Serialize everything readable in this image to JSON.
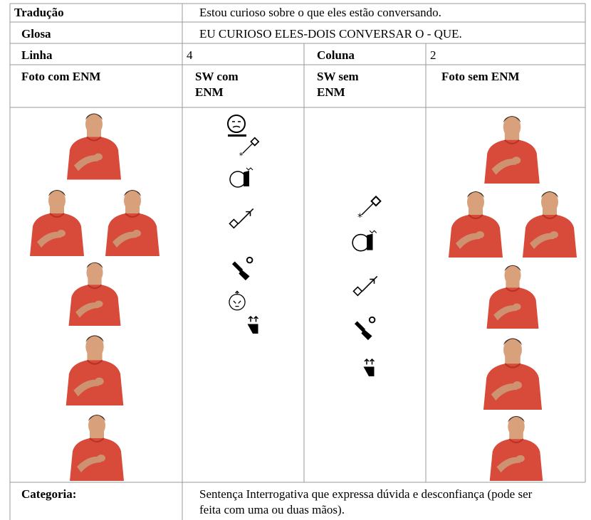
{
  "table": {
    "translation": {
      "label": "Tradução",
      "value": "Estou curioso sobre o que eles estão conversando."
    },
    "gloss": {
      "label": "Glosa",
      "value": "EU CURIOSO ELES-DOIS CONVERSAR O - QUE."
    },
    "position": {
      "line_label": "Linha",
      "line": 4,
      "column_label": "Coluna",
      "column": 2
    },
    "headers": [
      "Foto com ENM",
      "SW com ENM",
      "SW sem ENM",
      "Foto sem ENM"
    ],
    "category": {
      "label": "Categoria:",
      "value": "Sentença Interrogativa que expressa dúvida e desconfiança (pode ser feita com uma ou duas mãos)."
    }
  }
}
